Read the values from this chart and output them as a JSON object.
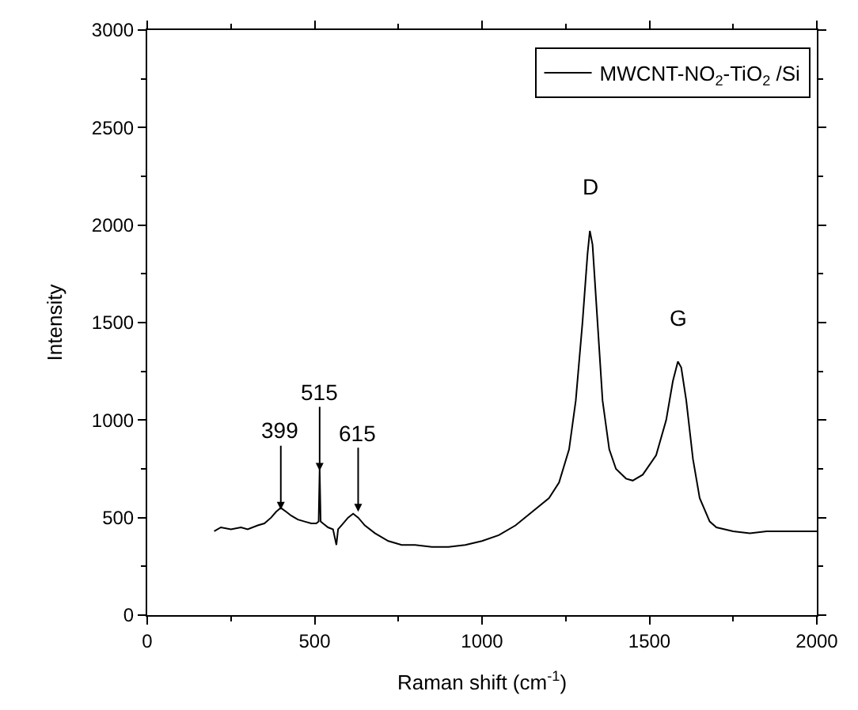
{
  "chart_data": {
    "type": "line",
    "xlabel": "Raman shift (cm$^{-1}$)",
    "ylabel": "Intensity",
    "x": [
      200,
      220,
      250,
      280,
      300,
      330,
      350,
      370,
      385,
      399,
      415,
      430,
      450,
      470,
      490,
      505,
      512,
      515,
      518,
      525,
      540,
      555,
      565,
      570,
      580,
      600,
      615,
      630,
      650,
      680,
      720,
      760,
      800,
      850,
      900,
      950,
      1000,
      1050,
      1100,
      1150,
      1200,
      1230,
      1260,
      1280,
      1300,
      1315,
      1322,
      1330,
      1345,
      1360,
      1380,
      1400,
      1430,
      1450,
      1480,
      1520,
      1550,
      1570,
      1585,
      1595,
      1610,
      1630,
      1650,
      1680,
      1700,
      1750,
      1800,
      1850,
      1900,
      1950,
      2000
    ],
    "series": [
      {
        "name": "MWCNT-NO$_{2}$-TiO$_{2}$ /Si",
        "color": "#000000",
        "values": [
          430,
          450,
          440,
          450,
          440,
          460,
          470,
          500,
          530,
          550,
          530,
          510,
          490,
          480,
          470,
          470,
          480,
          750,
          480,
          470,
          450,
          440,
          360,
          440,
          460,
          500,
          520,
          500,
          460,
          420,
          380,
          360,
          360,
          350,
          350,
          360,
          380,
          410,
          460,
          530,
          600,
          680,
          850,
          1100,
          1500,
          1850,
          1970,
          1900,
          1500,
          1100,
          850,
          750,
          700,
          690,
          720,
          820,
          1000,
          1200,
          1300,
          1270,
          1100,
          800,
          600,
          480,
          450,
          430,
          420,
          430,
          430,
          430,
          430
        ]
      }
    ],
    "xlim": [
      0,
      2000
    ],
    "xticks": [
      0,
      500,
      1000,
      1500,
      2000
    ],
    "ylim": [
      0,
      3000
    ],
    "yticks": [
      0,
      500,
      1000,
      1500,
      2000,
      2500,
      3000
    ],
    "legend": "top right",
    "marker": "none",
    "line_style": "solid",
    "annotations": [
      {
        "text": "399",
        "x": 399,
        "y": 540
      },
      {
        "text": "515",
        "x": 515,
        "y": 740
      },
      {
        "text": "615",
        "x": 630,
        "y": 530
      },
      "D",
      "G"
    ]
  }
}
